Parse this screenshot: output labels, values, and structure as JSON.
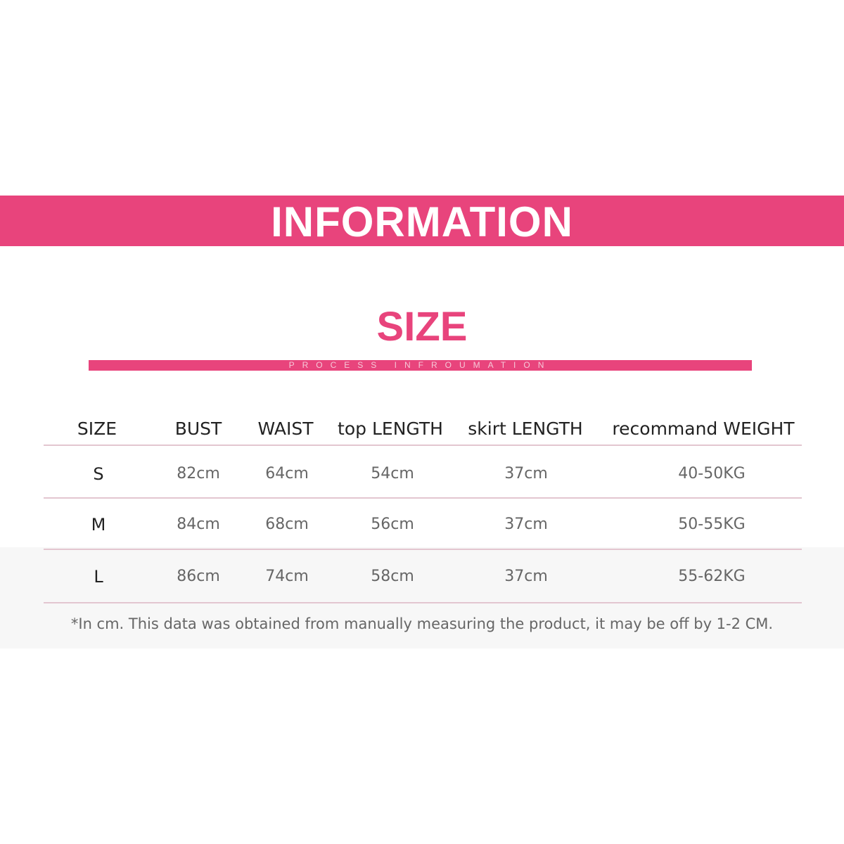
{
  "banner": {
    "title": "INFORMATION"
  },
  "section": {
    "title": "SIZE",
    "subtitle": "PROCESS INFROUMATION"
  },
  "table": {
    "headers": [
      "SIZE",
      "BUST",
      "WAIST",
      "top LENGTH",
      "skirt LENGTH",
      "recommand WEIGHT"
    ],
    "rows": [
      [
        "S",
        "82cm",
        "64cm",
        "54cm",
        "37cm",
        "40-50KG"
      ],
      [
        "M",
        "84cm",
        "68cm",
        "56cm",
        "37cm",
        "50-55KG"
      ],
      [
        "L",
        "86cm",
        "74cm",
        "58cm",
        "37cm",
        "55-62KG"
      ]
    ]
  },
  "note": "*In cm. This data was obtained from manually measuring the product, it may be off by 1-2 CM.",
  "colors": {
    "accent": "#e8447c"
  }
}
